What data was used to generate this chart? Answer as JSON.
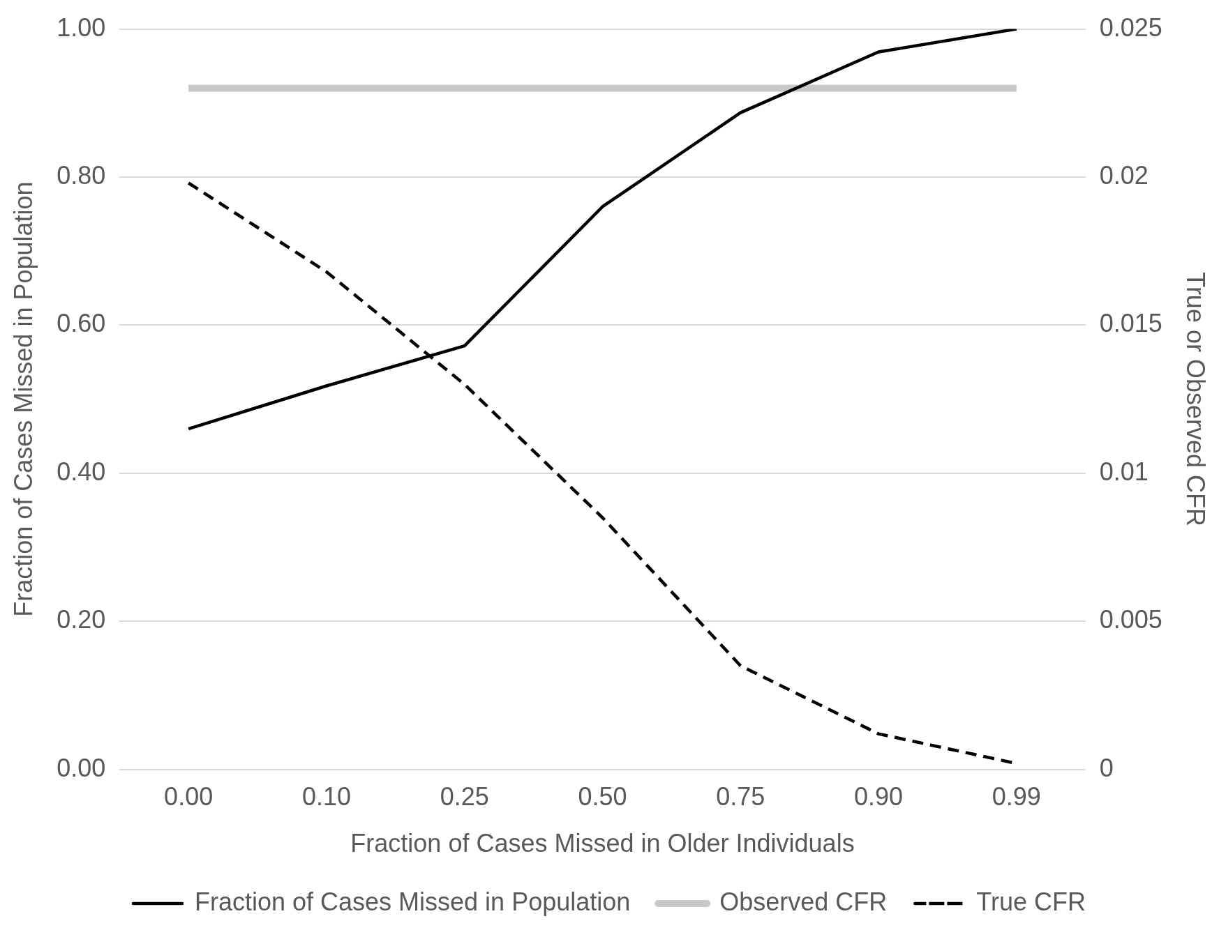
{
  "chart_data": {
    "type": "line",
    "xlabel": "Fraction of Cases Missed in Older Individuals",
    "ylabel": "Fraction of Cases Missed in Population",
    "y2label": "True or Observed CFR",
    "categories": [
      "0.00",
      "0.10",
      "0.25",
      "0.50",
      "0.75",
      "0.90",
      "0.99"
    ],
    "series": [
      {
        "name": "Fraction of Cases Missed in Population",
        "color": "#000000",
        "line_style": "solid",
        "values": [
          0.46,
          0.518,
          0.572,
          0.76,
          0.887,
          0.969,
          1.0
        ]
      },
      {
        "name": "Observed CFR",
        "color": "#c8c8c8",
        "line_style": "solid",
        "axis": "y2",
        "values": [
          0.023,
          0.023,
          0.023,
          0.023,
          0.023,
          0.023,
          0.023
        ]
      },
      {
        "name": "True CFR",
        "color": "#000000",
        "line_style": "dashed",
        "axis": "y2",
        "values": [
          0.0198,
          0.0168,
          0.013,
          0.0085,
          0.0035,
          0.0012,
          0.0002
        ]
      }
    ],
    "ylim": [
      0,
      1
    ],
    "yticks": [
      {
        "value": 0,
        "label": "0.00"
      },
      {
        "value": 0.2,
        "label": "0.20"
      },
      {
        "value": 0.4,
        "label": "0.40"
      },
      {
        "value": 0.6,
        "label": "0.60"
      },
      {
        "value": 0.8,
        "label": "0.80"
      },
      {
        "value": 1,
        "label": "1.00"
      }
    ],
    "y2lim": [
      0,
      0.025
    ],
    "y2ticks": [
      0,
      0.005,
      0.01,
      0.015,
      0.02,
      0.025
    ],
    "grid": "y",
    "legend": "bottom",
    "marker": "none"
  }
}
